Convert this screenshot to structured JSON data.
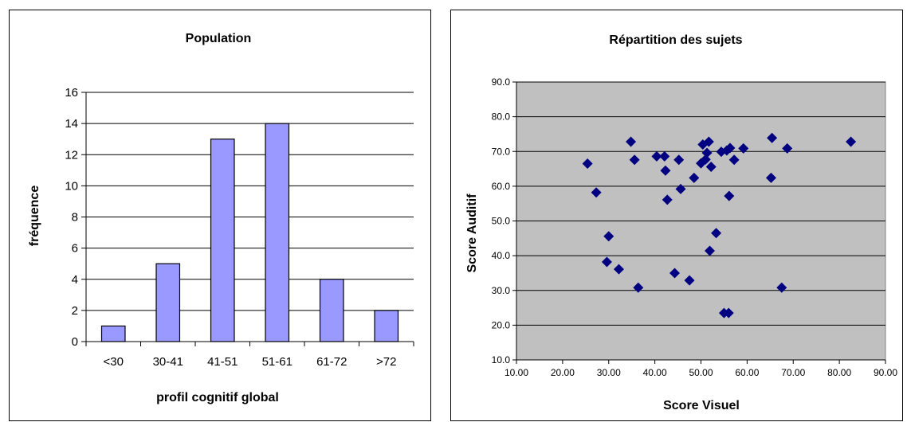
{
  "chart_data": [
    {
      "type": "bar",
      "title": "Population",
      "xlabel": "profil cognitif global",
      "ylabel": "fréquence",
      "categories": [
        "<30",
        "30-41",
        "41-51",
        "51-61",
        "61-72",
        ">72"
      ],
      "values": [
        1,
        5,
        13,
        14,
        4,
        2
      ],
      "ylim": [
        0,
        16
      ],
      "yticks": [
        "0",
        "2",
        "4",
        "6",
        "8",
        "10",
        "12",
        "14",
        "16"
      ],
      "bar_color": "#9999ff",
      "grid": true
    },
    {
      "type": "scatter",
      "title": "Répartition des sujets",
      "xlabel": "Score Visuel",
      "ylabel": "Score Auditif",
      "xlim": [
        10,
        90
      ],
      "ylim": [
        10,
        90
      ],
      "xticks": [
        "10.00",
        "20.00",
        "30.00",
        "40.00",
        "50.00",
        "60.00",
        "70.00",
        "80.00",
        "90.00"
      ],
      "yticks": [
        "10.0",
        "20.0",
        "30.0",
        "40.0",
        "50.0",
        "60.0",
        "70.0",
        "80.0",
        "90.0"
      ],
      "marker_color": "#000080",
      "plot_background": "#c0c0c0",
      "grid": true,
      "points": [
        [
          25.4,
          66.5
        ],
        [
          27.3,
          58.2
        ],
        [
          29.6,
          38.2
        ],
        [
          30.0,
          45.6
        ],
        [
          32.2,
          36.1
        ],
        [
          34.8,
          72.8
        ],
        [
          35.6,
          67.6
        ],
        [
          36.4,
          30.8
        ],
        [
          40.4,
          68.6
        ],
        [
          42.1,
          68.6
        ],
        [
          42.3,
          64.5
        ],
        [
          42.7,
          56.1
        ],
        [
          44.3,
          35.0
        ],
        [
          45.2,
          67.6
        ],
        [
          45.6,
          59.2
        ],
        [
          47.5,
          32.9
        ],
        [
          48.5,
          62.4
        ],
        [
          50.0,
          66.6
        ],
        [
          50.4,
          72.0
        ],
        [
          51.0,
          67.7
        ],
        [
          51.3,
          69.6
        ],
        [
          51.7,
          72.8
        ],
        [
          51.9,
          41.4
        ],
        [
          52.2,
          65.6
        ],
        [
          53.3,
          46.5
        ],
        [
          54.4,
          69.9
        ],
        [
          55.0,
          23.5
        ],
        [
          55.6,
          70.3
        ],
        [
          56.0,
          23.5
        ],
        [
          56.1,
          57.2
        ],
        [
          56.3,
          71.0
        ],
        [
          57.2,
          67.6
        ],
        [
          59.2,
          70.9
        ],
        [
          65.2,
          62.4
        ],
        [
          65.4,
          73.9
        ],
        [
          67.5,
          30.8
        ],
        [
          68.7,
          70.9
        ],
        [
          82.5,
          72.8
        ]
      ]
    }
  ]
}
